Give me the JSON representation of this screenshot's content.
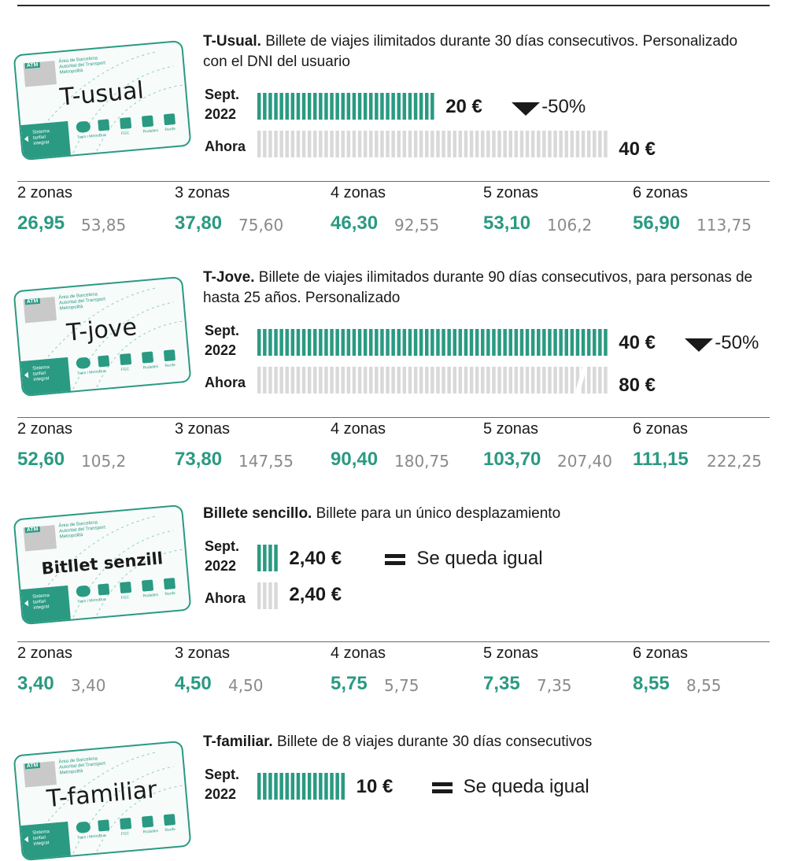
{
  "colors": {
    "accent": "#2a9a82",
    "old_price": "#8a8a8a",
    "bar_grey": "#d9d9d9",
    "text": "#1a1a1a"
  },
  "labels": {
    "sept": "Sept.",
    "year": "2022",
    "ahora": "Ahora"
  },
  "card": {
    "atm": "ATM",
    "org": [
      "Àrea de Barcelona",
      "Autoritat del Transport",
      "Metropolità"
    ],
    "stripe": [
      "Sistema",
      "tarifari",
      "integrat"
    ],
    "modes": [
      "Tram i Metro",
      "Bus",
      "FGC",
      "Rodalies",
      "Renfe"
    ]
  },
  "tickets": [
    {
      "card_title": "T-usual",
      "name": "T-Usual.",
      "desc": "Billete de viajes ilimitados durante 30 días consecutivos. Personalizado con el DNI del usuario",
      "sept_price": "20 €",
      "now_price": "40 €",
      "change_type": "down",
      "change": "-50%",
      "zones": [
        {
          "label": "2 zonas",
          "new": "26,95",
          "old": "53,85"
        },
        {
          "label": "3 zonas",
          "new": "37,80",
          "old": "75,60"
        },
        {
          "label": "4 zonas",
          "new": "46,30",
          "old": "92,55"
        },
        {
          "label": "5 zonas",
          "new": "53,10",
          "old": "106,2"
        },
        {
          "label": "6 zonas",
          "new": "56,90",
          "old": "113,75"
        }
      ]
    },
    {
      "card_title": "T-jove",
      "name": "T-Jove.",
      "desc": "Billete de viajes ilimitados durante 90 días consecutivos, para personas de hasta 25 años. Personalizado",
      "sept_price": "40 €",
      "now_price": "80 €",
      "change_type": "down",
      "change": "-50%",
      "zones": [
        {
          "label": "2 zonas",
          "new": "52,60",
          "old": "105,2"
        },
        {
          "label": "3 zonas",
          "new": "73,80",
          "old": "147,55"
        },
        {
          "label": "4 zonas",
          "new": "90,40",
          "old": "180,75"
        },
        {
          "label": "5 zonas",
          "new": "103,70",
          "old": "207,40"
        },
        {
          "label": "6 zonas",
          "new": "111,15",
          "old": "222,25"
        }
      ]
    },
    {
      "card_title": "Bitllet senzill",
      "name": "Billete sencillo.",
      "desc": "Billete para un único desplazamiento",
      "sept_price": "2,40 €",
      "now_price": "2,40 €",
      "change_type": "equal",
      "change": "Se queda igual",
      "zones": [
        {
          "label": "2 zonas",
          "new": "3,40",
          "old": "3,40"
        },
        {
          "label": "3 zonas",
          "new": "4,50",
          "old": "4,50"
        },
        {
          "label": "4 zonas",
          "new": "5,75",
          "old": "5,75"
        },
        {
          "label": "5 zonas",
          "new": "7,35",
          "old": "7,35"
        },
        {
          "label": "6 zonas",
          "new": "8,55",
          "old": "8,55"
        }
      ]
    },
    {
      "card_title": "T-familiar",
      "name": "T-familiar.",
      "desc": "Billete de 8 viajes durante 30 días consecutivos",
      "sept_price": "10 €",
      "change_type": "equal",
      "change": "Se queda igual"
    }
  ],
  "chart_data": {
    "type": "bar",
    "categories": [
      "Sept. 2022",
      "Ahora"
    ],
    "unit": "€",
    "series": [
      {
        "name": "T-Usual.",
        "values": [
          20,
          40
        ]
      },
      {
        "name": "T-Jove.",
        "values": [
          40,
          80
        ]
      },
      {
        "name": "Billete sencillo.",
        "values": [
          2.4,
          2.4
        ]
      },
      {
        "name": "T-familiar.",
        "values": [
          10,
          null
        ]
      }
    ],
    "zones_table": {
      "columns": [
        "2 zonas",
        "3 zonas",
        "4 zonas",
        "5 zonas",
        "6 zonas"
      ],
      "T-Usual.": {
        "new": [
          26.95,
          37.8,
          46.3,
          53.1,
          56.9
        ],
        "old": [
          53.85,
          75.6,
          92.55,
          106.2,
          113.75
        ]
      },
      "T-Jove.": {
        "new": [
          52.6,
          73.8,
          90.4,
          103.7,
          111.15
        ],
        "old": [
          105.2,
          147.55,
          180.75,
          207.4,
          222.25
        ]
      },
      "Billete sencillo.": {
        "new": [
          3.4,
          4.5,
          5.75,
          7.35,
          8.55
        ],
        "old": [
          3.4,
          4.5,
          5.75,
          7.35,
          8.55
        ]
      }
    }
  }
}
